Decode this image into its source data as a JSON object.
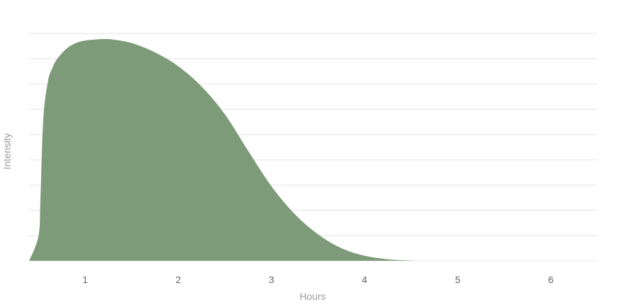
{
  "chart_data": {
    "type": "area",
    "title": "",
    "xlabel": "Hours",
    "ylabel": "Intensity",
    "xlim": [
      0.4,
      6.5
    ],
    "ylim": [
      0,
      9
    ],
    "x_ticks": [
      "1",
      "2",
      "3",
      "4",
      "5",
      "6"
    ],
    "grid": true,
    "fill_color": "#7d9b78",
    "gridline_color": "#e4e4e4",
    "x": [
      0.4,
      0.5,
      0.52,
      0.55,
      0.6,
      0.65,
      0.7,
      0.8,
      0.9,
      1.0,
      1.1,
      1.2,
      1.3,
      1.5,
      1.75,
      2.0,
      2.25,
      2.5,
      2.75,
      3.0,
      3.25,
      3.5,
      3.75,
      4.0,
      4.25,
      4.5,
      4.6,
      5.0,
      5.5,
      6.0,
      6.5
    ],
    "y": [
      0,
      1.0,
      2.5,
      5.6,
      7.1,
      7.65,
      8.0,
      8.4,
      8.62,
      8.72,
      8.76,
      8.78,
      8.76,
      8.62,
      8.25,
      7.7,
      6.9,
      5.8,
      4.35,
      2.95,
      1.85,
      1.05,
      0.5,
      0.2,
      0.06,
      0.01,
      0,
      0,
      0,
      0,
      0
    ]
  }
}
